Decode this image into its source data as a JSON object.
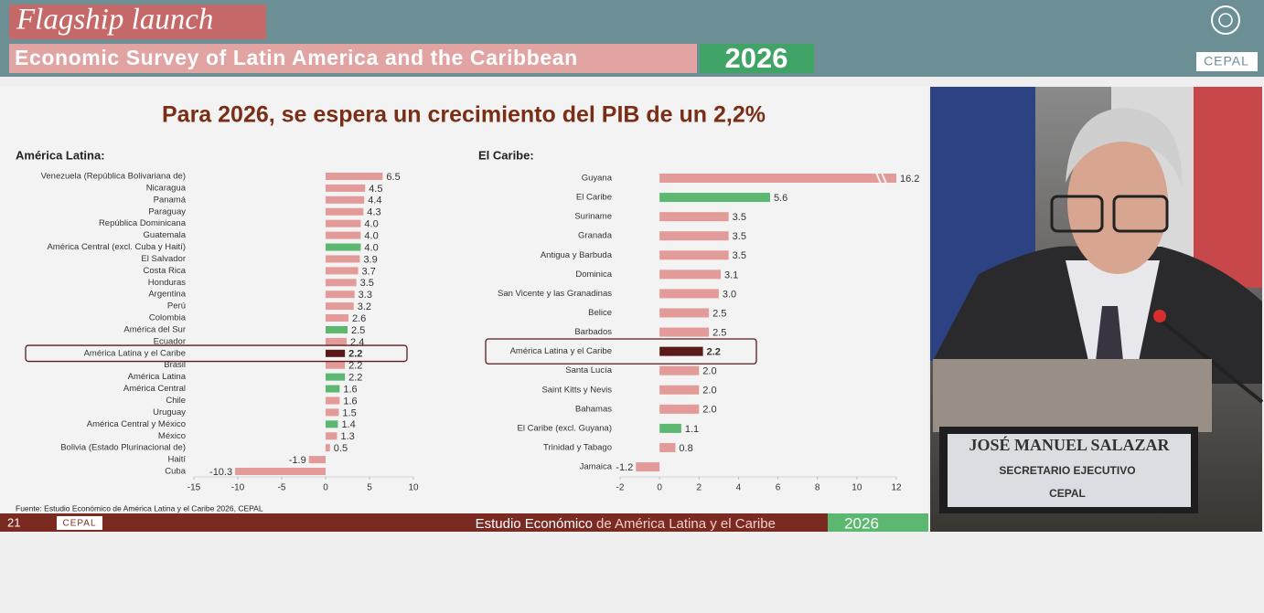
{
  "header": {
    "title": "Flagship launch",
    "subtitle": "Economic Survey of Latin America and the Caribbean",
    "year": "2026",
    "logo_text": "CEPAL"
  },
  "slide": {
    "title": "Para 2026, se espera un crecimiento del PIB de un 2,2%",
    "source": "Fuente: Estudio Económico de América Latina y el Caribe 2026, CEPAL"
  },
  "footer": {
    "page": "21",
    "logo": "CEPAL",
    "title_bold": "Estudio Económico",
    "title_rest": "de América Latina y el Caribe",
    "year": "2026"
  },
  "speaker": {
    "name": "JOSÉ MANUEL SALAZAR",
    "role": "SECRETARIO EJECUTIVO",
    "org": "CEPAL"
  },
  "chart_data": [
    {
      "type": "bar",
      "orientation": "horizontal",
      "title": "América Latina:",
      "categories": [
        "Venezuela (República Bolivariana de)",
        "Nicaragua",
        "Panamá",
        "Paraguay",
        "República Dominicana",
        "Guatemala",
        "América Central (excl. Cuba y Haití)",
        "El Salvador",
        "Costa Rica",
        "Honduras",
        "Argentina",
        "Perú",
        "Colombia",
        "América del Sur",
        "Ecuador",
        "América Latina y el Caribe",
        "Brasil",
        "América Latina",
        "América Central",
        "Chile",
        "Uruguay",
        "América Central y México",
        "México",
        "Bolivia (Estado Plurinacional de)",
        "Haití",
        "Cuba"
      ],
      "values": [
        6.5,
        4.5,
        4.4,
        4.3,
        4.0,
        4.0,
        4.0,
        3.9,
        3.7,
        3.5,
        3.3,
        3.2,
        2.6,
        2.5,
        2.4,
        2.2,
        2.2,
        2.2,
        1.6,
        1.6,
        1.5,
        1.4,
        1.3,
        0.5,
        -1.9,
        -10.3
      ],
      "value_labels": [
        "6.5",
        "4.5",
        "4.4",
        "4.3",
        "4.0",
        "4.0",
        "4.0",
        "3.9",
        "3.7",
        "3.5",
        "3.3",
        "3.2",
        "2.6",
        "2.5",
        "2.4",
        "2.2",
        "2.2",
        "2.2",
        "1.6",
        "1.6",
        "1.5",
        "1.4",
        "1.3",
        "0.5",
        "-1.9",
        "-10.3"
      ],
      "colors": [
        "#e29b98",
        "#e29b98",
        "#e29b98",
        "#e29b98",
        "#e29b98",
        "#e29b98",
        "#5cb870",
        "#e29b98",
        "#e29b98",
        "#e29b98",
        "#e29b98",
        "#e29b98",
        "#e29b98",
        "#5cb870",
        "#e29b98",
        "#5a1a1a",
        "#e29b98",
        "#5cb870",
        "#5cb870",
        "#e29b98",
        "#e29b98",
        "#5cb870",
        "#e29b98",
        "#e29b98",
        "#e29b98",
        "#e29b98"
      ],
      "highlight": 15,
      "xlim": [
        -15,
        10
      ],
      "xticks": [
        -15,
        -10,
        -5,
        0,
        5,
        10
      ]
    },
    {
      "type": "bar",
      "orientation": "horizontal",
      "title": "El Caribe:",
      "categories": [
        "Guyana",
        "El Caribe",
        "Suriname",
        "Granada",
        "Antigua y Barbuda",
        "Dominica",
        "San Vicente y las Granadinas",
        "Belice",
        "Barbados",
        "América Latina y el Caribe",
        "Santa Lucía",
        "Saint Kitts y Nevis",
        "Bahamas",
        "El Caribe (excl. Guyana)",
        "Trinidad y Tabago",
        "Jamaica"
      ],
      "values": [
        16.2,
        5.6,
        3.5,
        3.5,
        3.5,
        3.1,
        3.0,
        2.5,
        2.5,
        2.2,
        2.0,
        2.0,
        2.0,
        1.1,
        0.8,
        -1.2
      ],
      "value_labels": [
        "16.2",
        "5.6",
        "3.5",
        "3.5",
        "3.5",
        "3.1",
        "3.0",
        "2.5",
        "2.5",
        "2.2",
        "2.0",
        "2.0",
        "2.0",
        "1.1",
        "0.8",
        "-1.2"
      ],
      "colors": [
        "#e29b98",
        "#5cb870",
        "#e29b98",
        "#e29b98",
        "#e29b98",
        "#e29b98",
        "#e29b98",
        "#e29b98",
        "#e29b98",
        "#5a1a1a",
        "#e29b98",
        "#e29b98",
        "#e29b98",
        "#5cb870",
        "#e29b98",
        "#e29b98"
      ],
      "highlight": 9,
      "axis_break": true,
      "xlim": [
        -2,
        12
      ],
      "xticks": [
        -2,
        0,
        2,
        4,
        6,
        8,
        10,
        12
      ]
    }
  ]
}
